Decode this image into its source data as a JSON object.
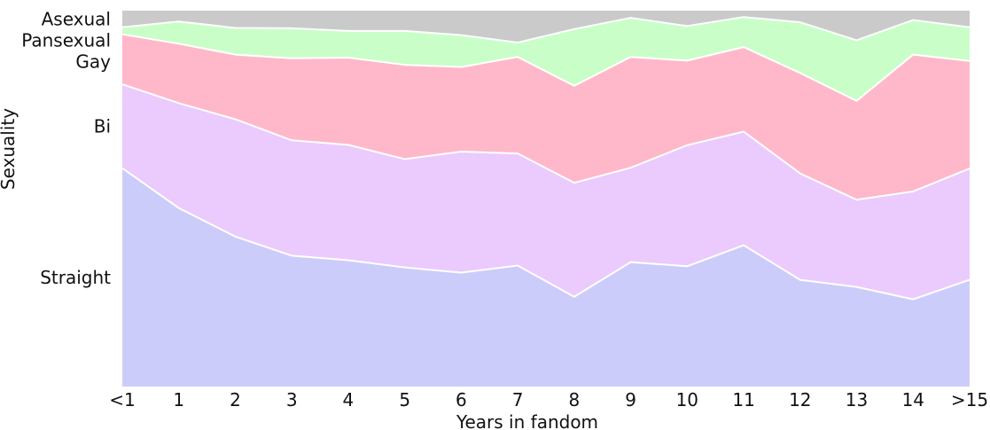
{
  "chart_data": {
    "type": "area",
    "stacked": "percent",
    "xlabel": "Years in fandom",
    "ylabel": "Sexuality",
    "ylim": [
      0,
      100
    ],
    "grid": false,
    "legend": "labels at left of plot",
    "categories": [
      "<1",
      "1",
      "2",
      "3",
      "4",
      "5",
      "6",
      "7",
      "8",
      "9",
      "10",
      "11",
      "12",
      "13",
      "14",
      ">15"
    ],
    "series": [
      {
        "name": "Straight",
        "color": "#ccccfb",
        "values": [
          58.1,
          47.5,
          39.9,
          34.8,
          33.6,
          31.7,
          30.3,
          32.2,
          23.9,
          33.1,
          32.0,
          37.6,
          28.4,
          26.5,
          23.2,
          28.4
        ]
      },
      {
        "name": "Bi",
        "color": "#ebcafd",
        "values": [
          22.3,
          27.9,
          31.2,
          30.7,
          30.7,
          28.8,
          32.2,
          29.8,
          30.3,
          25.1,
          32.2,
          30.2,
          28.3,
          23.2,
          28.7,
          29.6
        ]
      },
      {
        "name": "Gay",
        "color": "#ffb8c9",
        "values": [
          13.3,
          15.8,
          17.2,
          21.8,
          23.2,
          25.1,
          22.5,
          25.7,
          25.8,
          29.5,
          22.5,
          22.5,
          26.7,
          26.3,
          36.4,
          28.6
        ]
      },
      {
        "name": "Pansexual",
        "color": "#c9fec9",
        "values": [
          1.9,
          5.9,
          7.1,
          8.0,
          7.1,
          9.0,
          8.5,
          3.8,
          15.1,
          10.4,
          9.2,
          8.0,
          13.5,
          16.1,
          9.2,
          9.0
        ]
      },
      {
        "name": "Asexual",
        "color": "#cacaca",
        "values": [
          4.4,
          2.9,
          4.6,
          4.7,
          5.4,
          5.4,
          6.5,
          8.5,
          4.9,
          1.9,
          4.1,
          1.7,
          3.1,
          7.9,
          2.5,
          4.4
        ]
      }
    ]
  }
}
